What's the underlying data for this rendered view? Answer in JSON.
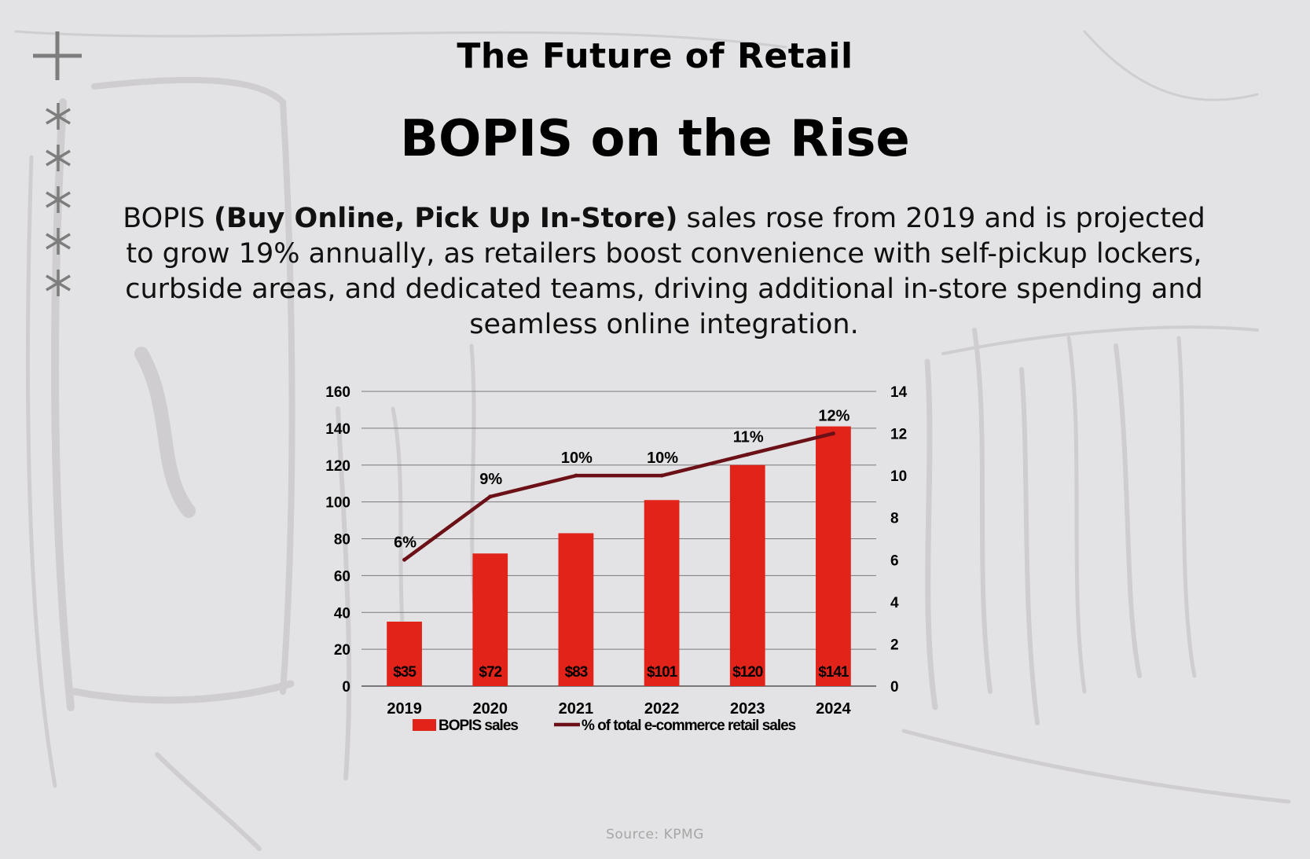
{
  "slide": {
    "eyebrow": "The Future of Retail",
    "headline": "BOPIS on the Rise",
    "intro": {
      "lead": "BOPIS",
      "bold": "(Buy Online, Pick Up In-Store)",
      "rest": "sales rose from 2019 and is projected to grow 19% annually, as retailers boost convenience with self-pickup lockers, curbside areas, and dedicated teams, driving additional in-store spending and seamless online integration."
    },
    "source": "Source: KPMG"
  },
  "decor": {
    "plus_icon": "plus-icon",
    "star_icon": "asterisk-icon",
    "star_count": 5
  },
  "colors": {
    "bar": "#e2231a",
    "line": "#6b1016",
    "background": "#e3e2e4"
  },
  "chart_data": {
    "type": "bar",
    "categories": [
      "2019",
      "2020",
      "2021",
      "2022",
      "2023",
      "2024"
    ],
    "series": [
      {
        "name": "BOPIS sales",
        "type": "bar",
        "axis": "left",
        "values": [
          35,
          72,
          83,
          101,
          120,
          141
        ],
        "labels": [
          "$35",
          "$72",
          "$83",
          "$101",
          "$120",
          "$141"
        ]
      },
      {
        "name": "% of total e-commerce retail sales",
        "type": "line",
        "axis": "right",
        "values": [
          6,
          9,
          10,
          10,
          11,
          12
        ],
        "labels": [
          "6%",
          "9%",
          "10%",
          "10%",
          "11%",
          "12%"
        ]
      }
    ],
    "ylim": [
      0,
      160
    ],
    "y_ticks": [
      "0",
      "20",
      "40",
      "60",
      "80",
      "100",
      "120",
      "140",
      "160"
    ],
    "y2lim": [
      0,
      14
    ],
    "y2_ticks": [
      "0",
      "2",
      "4",
      "6",
      "8",
      "10",
      "12",
      "14"
    ],
    "grid": true,
    "legend": "bottom",
    "xlabel": "",
    "ylabel": ""
  }
}
